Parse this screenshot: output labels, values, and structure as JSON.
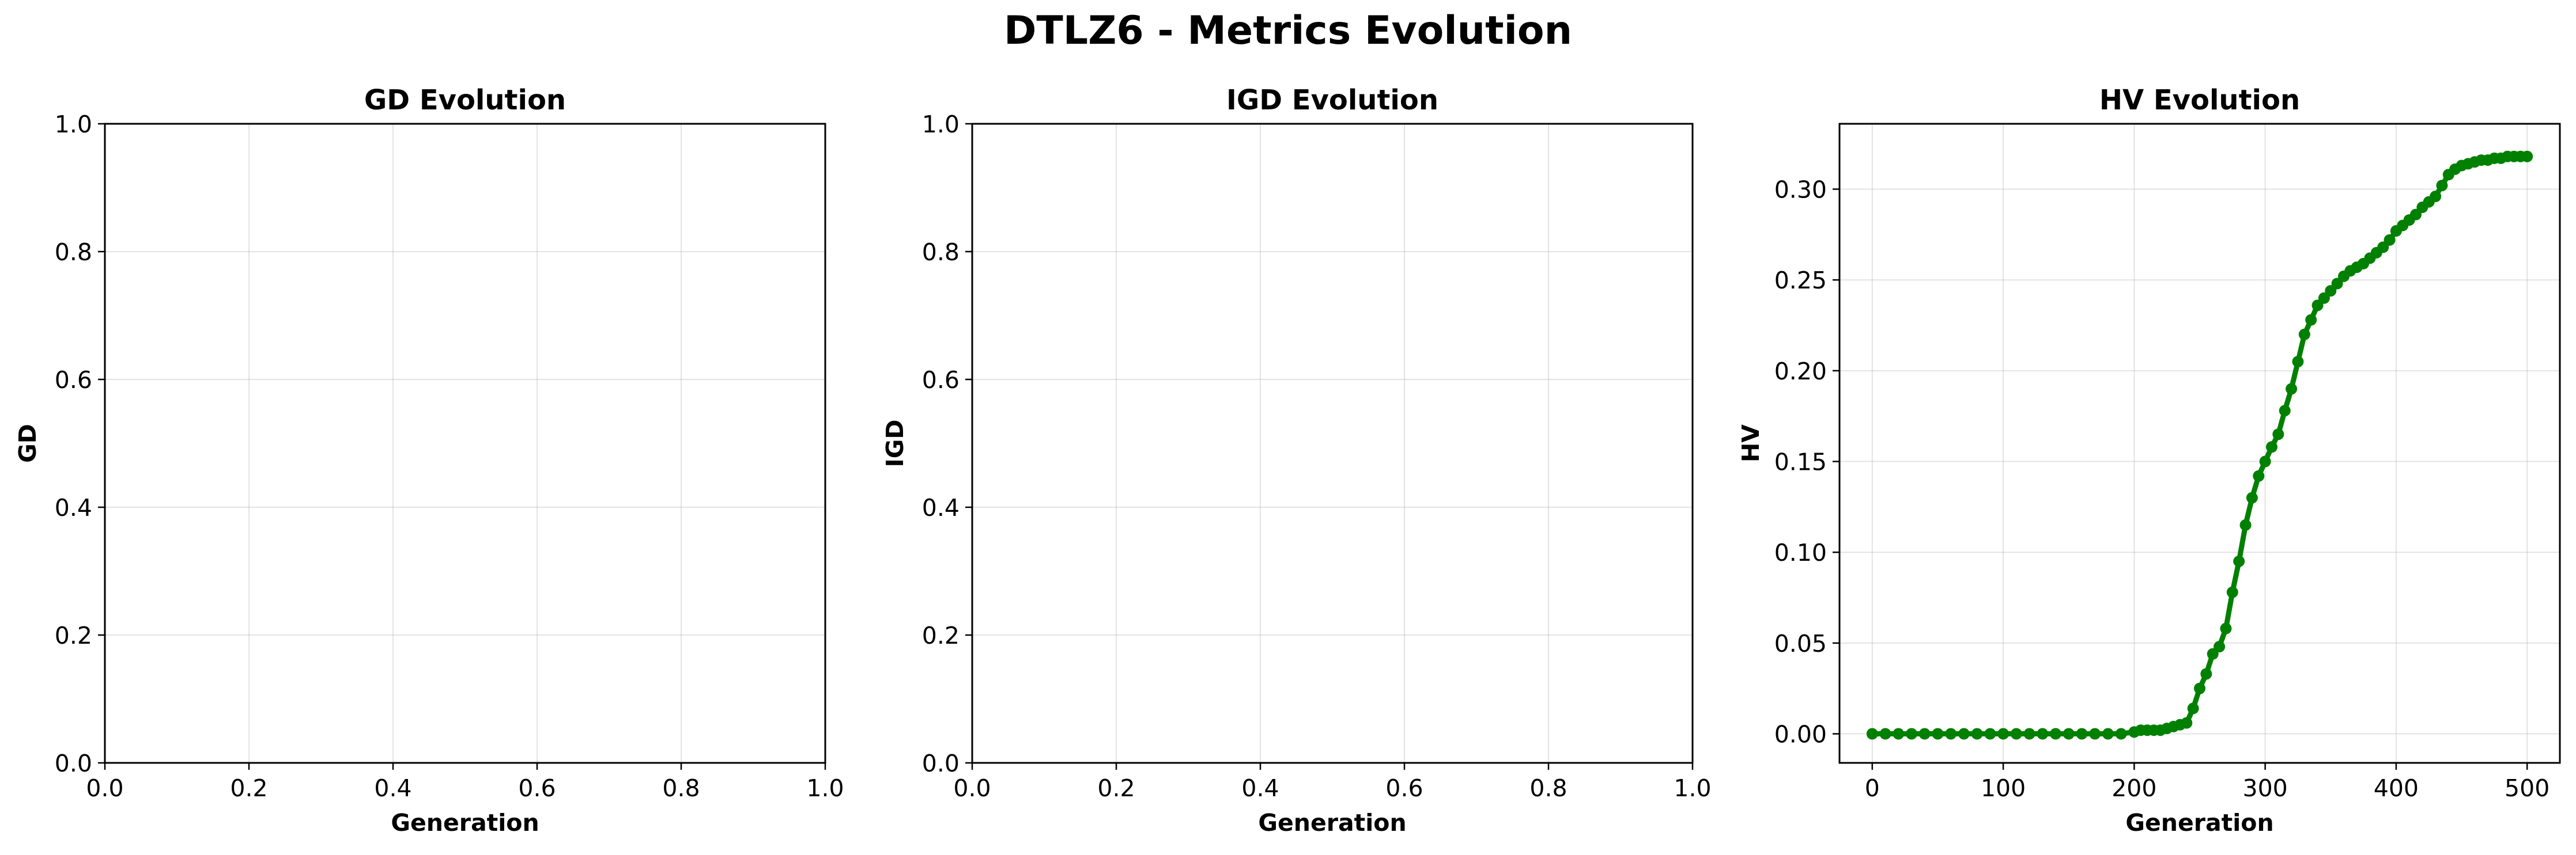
{
  "figure_title": "DTLZ6 - Metrics Evolution",
  "chart_data": [
    {
      "type": "line",
      "title": "GD Evolution",
      "xlabel": "Generation",
      "ylabel": "GD",
      "xlim": [
        0,
        1
      ],
      "ylim": [
        0,
        1
      ],
      "x_ticks": [
        "0.0",
        "0.2",
        "0.4",
        "0.6",
        "0.8",
        "1.0"
      ],
      "y_ticks": [
        "0.0",
        "0.2",
        "0.4",
        "0.6",
        "0.8",
        "1.0"
      ],
      "grid": true,
      "series": []
    },
    {
      "type": "line",
      "title": "IGD Evolution",
      "xlabel": "Generation",
      "ylabel": "IGD",
      "xlim": [
        0,
        1
      ],
      "ylim": [
        0,
        1
      ],
      "x_ticks": [
        "0.0",
        "0.2",
        "0.4",
        "0.6",
        "0.8",
        "1.0"
      ],
      "y_ticks": [
        "0.0",
        "0.2",
        "0.4",
        "0.6",
        "0.8",
        "1.0"
      ],
      "grid": true,
      "series": []
    },
    {
      "type": "line",
      "title": "HV Evolution",
      "xlabel": "Generation",
      "ylabel": "HV",
      "xlim": [
        -25,
        525
      ],
      "ylim": [
        -0.016,
        0.336
      ],
      "x_ticks": [
        "0",
        "100",
        "200",
        "300",
        "400",
        "500"
      ],
      "y_ticks": [
        "0.00",
        "0.05",
        "0.10",
        "0.15",
        "0.20",
        "0.25",
        "0.30"
      ],
      "grid": true,
      "series": [
        {
          "color": "#008000",
          "marker": "circle",
          "x": [
            0,
            10,
            20,
            30,
            40,
            50,
            60,
            70,
            80,
            90,
            100,
            110,
            120,
            130,
            140,
            150,
            160,
            170,
            180,
            190,
            200,
            205,
            210,
            215,
            220,
            225,
            230,
            235,
            240,
            245,
            250,
            255,
            260,
            265,
            270,
            275,
            280,
            285,
            290,
            295,
            300,
            305,
            310,
            315,
            320,
            325,
            330,
            335,
            340,
            345,
            350,
            355,
            360,
            365,
            370,
            375,
            380,
            385,
            390,
            395,
            400,
            405,
            410,
            415,
            420,
            425,
            430,
            435,
            440,
            445,
            450,
            455,
            460,
            465,
            470,
            475,
            480,
            485,
            490,
            495,
            500
          ],
          "y": [
            0,
            0,
            0,
            0,
            0,
            0,
            0,
            0,
            0,
            0,
            0,
            0,
            0,
            0,
            0,
            0,
            0,
            0,
            0,
            0,
            0.001,
            0.002,
            0.002,
            0.002,
            0.002,
            0.003,
            0.004,
            0.005,
            0.006,
            0.014,
            0.025,
            0.033,
            0.044,
            0.048,
            0.058,
            0.078,
            0.095,
            0.115,
            0.13,
            0.142,
            0.15,
            0.158,
            0.165,
            0.178,
            0.19,
            0.205,
            0.22,
            0.228,
            0.236,
            0.24,
            0.244,
            0.248,
            0.252,
            0.255,
            0.257,
            0.259,
            0.262,
            0.265,
            0.268,
            0.272,
            0.277,
            0.28,
            0.283,
            0.286,
            0.29,
            0.293,
            0.296,
            0.302,
            0.308,
            0.311,
            0.313,
            0.314,
            0.315,
            0.316,
            0.316,
            0.317,
            0.317,
            0.318,
            0.318,
            0.318,
            0.318
          ]
        }
      ]
    }
  ]
}
